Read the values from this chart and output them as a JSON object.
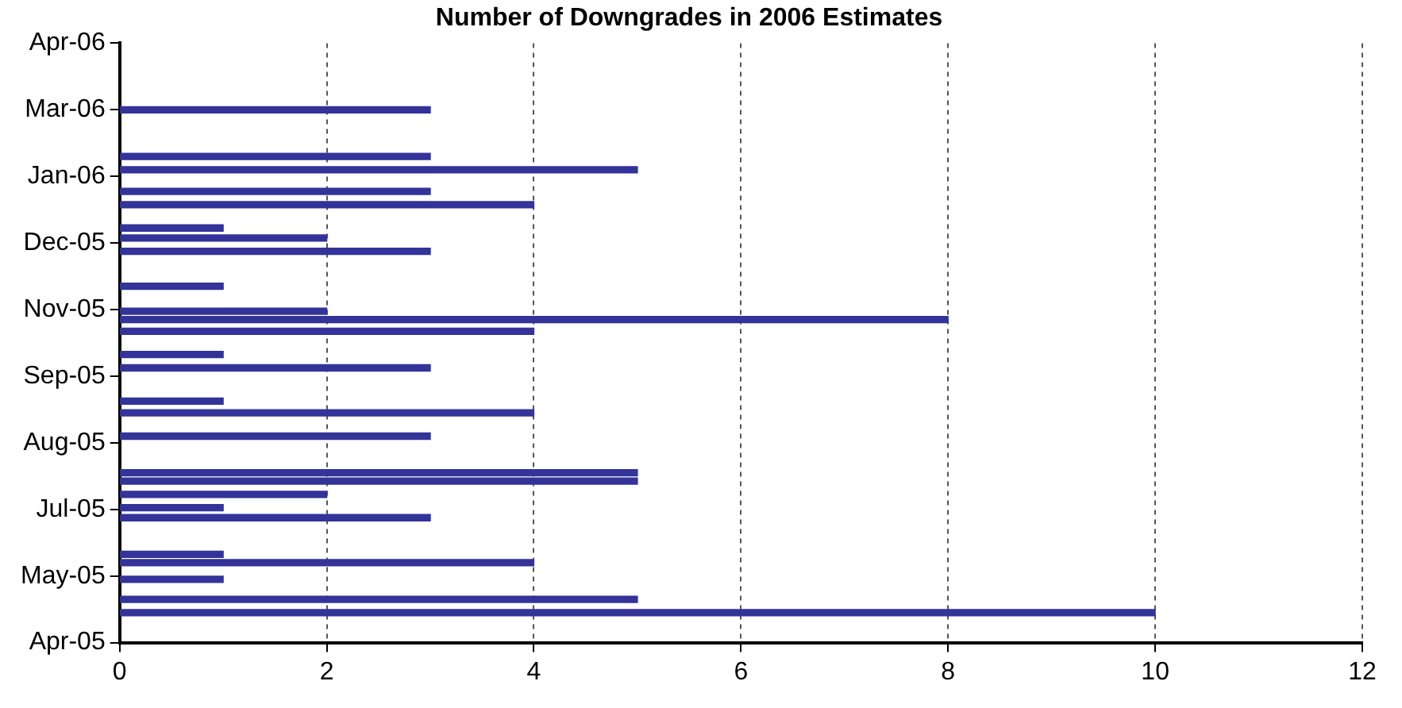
{
  "chart_data": {
    "type": "bar",
    "orientation": "horizontal",
    "title": "Number of Downgrades in 2006 Estimates",
    "x": [
      "2005-05-06",
      "2005-05-14",
      "2005-05-26",
      "2005-06-05",
      "2005-06-10",
      "2005-07-02",
      "2005-07-08",
      "2005-07-16",
      "2005-07-24",
      "2005-07-29",
      "2005-08-20",
      "2005-09-03",
      "2005-09-10",
      "2005-09-30",
      "2005-10-08",
      "2005-10-22",
      "2005-10-29",
      "2005-11-03",
      "2005-11-18",
      "2005-12-09",
      "2005-12-17",
      "2005-12-23",
      "2006-01-06",
      "2006-01-14",
      "2006-01-27",
      "2006-02-04",
      "2006-03-04"
    ],
    "values": [
      10,
      5,
      1,
      4,
      1,
      3,
      1,
      2,
      5,
      5,
      3,
      4,
      1,
      3,
      1,
      4,
      8,
      2,
      1,
      3,
      2,
      1,
      4,
      3,
      5,
      3,
      3
    ],
    "color": "#333399",
    "xlim": [
      0,
      12
    ],
    "xticks": [
      0,
      2,
      4,
      6,
      8,
      10,
      12
    ],
    "ylim": [
      "2005-04-18",
      "2006-04-13"
    ],
    "yticks": [
      {
        "value": "2005-04-18",
        "label": "Apr-05"
      },
      {
        "value": "2005-05-28",
        "label": "May-05"
      },
      {
        "value": "2005-07-07",
        "label": "Jul-05"
      },
      {
        "value": "2005-08-16",
        "label": "Aug-05"
      },
      {
        "value": "2005-09-25",
        "label": "Sep-05"
      },
      {
        "value": "2005-11-04",
        "label": "Nov-05"
      },
      {
        "value": "2005-12-14",
        "label": "Dec-05"
      },
      {
        "value": "2006-01-23",
        "label": "Jan-06"
      },
      {
        "value": "2006-03-04",
        "label": "Mar-06"
      },
      {
        "value": "2006-04-13",
        "label": "Apr-06"
      }
    ],
    "grid": "x"
  }
}
